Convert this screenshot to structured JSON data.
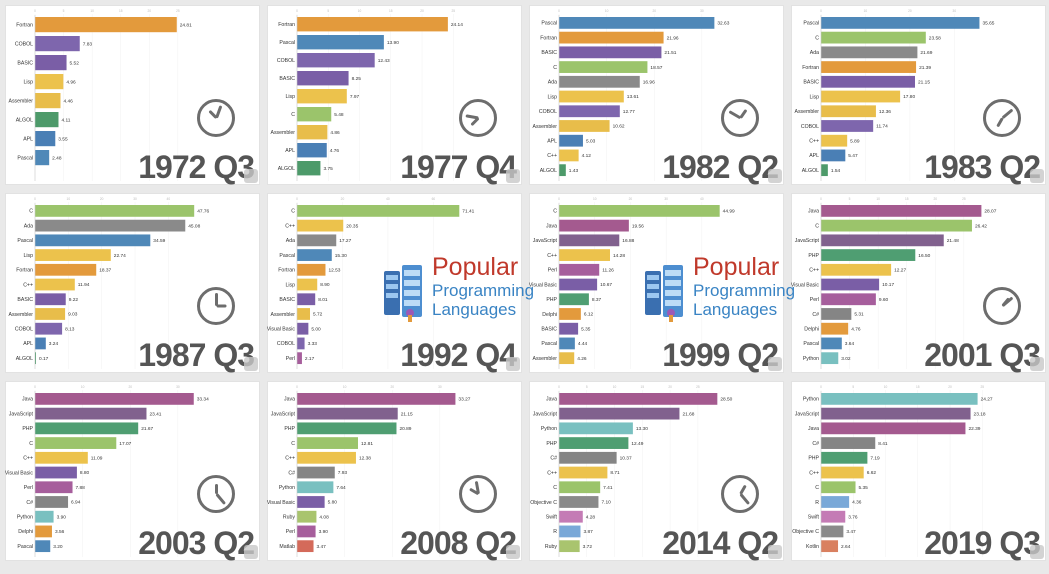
{
  "logo": {
    "title": "Popular",
    "line1": "Programming",
    "line2": "Languages"
  },
  "colors": {
    "Fortran": "#e39a3c",
    "COBOL": "#7e66ad",
    "BASIC": "#7a5ea6",
    "Lisp": "#ecc24c",
    "Assembler": "#e8bd4a",
    "ALGOL": "#4d9a6a",
    "APL": "#4a7fb5",
    "Pascal": "#4f88b8",
    "C": "#9bc46b",
    "Ada": "#8a8a8a",
    "C++": "#ecc24c",
    "Visual Basic": "#7a5ea6",
    "Perl": "#a65e9c",
    "Java": "#a45a8f",
    "JavaScript": "#81618e",
    "PHP": "#4f9e72",
    "Delphi": "#e39a3c",
    "Python": "#79c0c0",
    "C#": "#858585",
    "Ruby": "#a9c46e",
    "Matlab": "#d46a5a",
    "Objective C": "#8a8a8a",
    "Swift": "#c47bb5",
    "R": "#79a8d8",
    "Kotlin": "#d98060"
  },
  "chart_data": [
    {
      "type": "bar",
      "title": "Popular Programming Languages",
      "period": "1972 Q3",
      "categories": [
        "Fortran",
        "COBOL",
        "BASIC",
        "Lisp",
        "Assembler",
        "ALGOL",
        "APL",
        "Pascal"
      ],
      "values": [
        24.81,
        7.83,
        5.52,
        4.96,
        4.46,
        4.11,
        3.55,
        2.48
      ],
      "value_labels": [
        "24.81",
        "7.83",
        "5.52",
        "4.96",
        "4.46",
        "4.11",
        "3.55",
        "2.48"
      ],
      "xlim": [
        0,
        35
      ],
      "ticks": [
        "0",
        "5",
        "10",
        "15",
        "20",
        "25"
      ]
    },
    {
      "type": "bar",
      "period": "1977 Q4",
      "categories": [
        "Fortran",
        "Pascal",
        "COBOL",
        "BASIC",
        "Lisp",
        "C",
        "Assembler",
        "APL",
        "ALGOL"
      ],
      "values": [
        24.14,
        13.9,
        12.43,
        8.25,
        7.97,
        5.48,
        4.86,
        4.76,
        3.75
      ],
      "value_labels": [
        "24.14",
        "13.90",
        "12.43",
        "8.25",
        "7.97",
        "5.48",
        "4.86",
        "4.76",
        "3.75"
      ],
      "xlim": [
        0,
        32
      ],
      "ticks": [
        "0",
        "5",
        "10",
        "15",
        "20",
        "25"
      ]
    },
    {
      "type": "bar",
      "period": "1982 Q2",
      "categories": [
        "Pascal",
        "Fortran",
        "BASIC",
        "C",
        "Ada",
        "Lisp",
        "COBOL",
        "Assembler",
        "APL",
        "C++",
        "ALGOL"
      ],
      "values": [
        32.63,
        21.96,
        21.51,
        18.57,
        16.96,
        13.61,
        12.77,
        10.62,
        5.03,
        4.12,
        1.43
      ],
      "value_labels": [
        "32.63",
        "21.96",
        "21.51",
        "18.57",
        "16.96",
        "13.61",
        "12.77",
        "10.62",
        "5.03",
        "4.12",
        "1.43"
      ],
      "xlim": [
        0,
        42
      ],
      "ticks": [
        "0",
        "10",
        "20",
        "30"
      ]
    },
    {
      "type": "bar",
      "period": "1983 Q2",
      "categories": [
        "Pascal",
        "C",
        "Ada",
        "Fortran",
        "BASIC",
        "Lisp",
        "Assembler",
        "COBOL",
        "C++",
        "APL",
        "ALGOL"
      ],
      "values": [
        35.65,
        23.58,
        21.69,
        21.39,
        21.15,
        17.8,
        12.36,
        11.74,
        5.89,
        5.47,
        1.54
      ],
      "value_labels": [
        "35.65",
        "23.58",
        "21.69",
        "21.39",
        "21.15",
        "17.80",
        "12.36",
        "11.74",
        "5.89",
        "5.47",
        "1.54"
      ],
      "xlim": [
        0,
        45
      ],
      "ticks": [
        "0",
        "10",
        "20",
        "30"
      ]
    },
    {
      "type": "bar",
      "period": "1987 Q3",
      "categories": [
        "C",
        "Ada",
        "Pascal",
        "Lisp",
        "Fortran",
        "C++",
        "BASIC",
        "Assembler",
        "COBOL",
        "APL",
        "ALGOL"
      ],
      "values": [
        47.76,
        45.08,
        34.59,
        22.74,
        18.37,
        11.94,
        9.22,
        9.03,
        8.13,
        3.24,
        0.17
      ],
      "value_labels": [
        "47.76",
        "45.08",
        "34.59",
        "22.74",
        "18.37",
        "11.94",
        "9.22",
        "9.03",
        "8.13",
        "3.24",
        "0.17"
      ],
      "xlim": [
        0,
        60
      ],
      "ticks": [
        "0",
        "10",
        "20",
        "30",
        "40"
      ]
    },
    {
      "type": "bar",
      "period": "1992 Q4",
      "categories": [
        "C",
        "C++",
        "Ada",
        "Pascal",
        "Fortran",
        "Lisp",
        "BASIC",
        "Assembler",
        "Visual Basic",
        "COBOL",
        "Perl"
      ],
      "values": [
        71.41,
        20.35,
        17.27,
        15.3,
        12.53,
        8.9,
        8.01,
        5.72,
        5.0,
        3.33,
        2.17
      ],
      "value_labels": [
        "71.41",
        "20.35",
        "17.27",
        "15.30",
        "12.53",
        "8.90",
        "8.01",
        "5.72",
        "5.00",
        "3.33",
        "2.17"
      ],
      "xlim": [
        0,
        88
      ],
      "ticks": [
        "0",
        "20",
        "40",
        "60"
      ]
    },
    {
      "type": "bar",
      "period": "1999 Q2",
      "categories": [
        "C",
        "Java",
        "JavaScript",
        "C++",
        "Perl",
        "Visual Basic",
        "PHP",
        "Delphi",
        "BASIC",
        "Pascal",
        "Assembler"
      ],
      "values": [
        44.99,
        19.56,
        16.88,
        14.28,
        11.26,
        10.67,
        8.37,
        6.12,
        5.35,
        4.44,
        4.26
      ],
      "value_labels": [
        "44.99",
        "19.56",
        "16.88",
        "14.28",
        "11.26",
        "10.67",
        "8.37",
        "6.12",
        "5.35",
        "4.44",
        "4.26"
      ],
      "xlim": [
        0,
        56
      ],
      "ticks": [
        "0",
        "10",
        "20",
        "30",
        "40"
      ]
    },
    {
      "type": "bar",
      "period": "2001 Q3",
      "categories": [
        "Java",
        "C",
        "JavaScript",
        "PHP",
        "C++",
        "Visual Basic",
        "Perl",
        "C#",
        "Delphi",
        "Pascal",
        "Python"
      ],
      "values": [
        28.07,
        26.42,
        21.48,
        16.5,
        12.27,
        10.17,
        9.6,
        5.31,
        4.76,
        3.64,
        3.02
      ],
      "value_labels": [
        "28.07",
        "26.42",
        "21.48",
        "16.50",
        "12.27",
        "10.17",
        "9.60",
        "5.31",
        "4.76",
        "3.64",
        "3.02"
      ],
      "xlim": [
        0,
        35
      ],
      "ticks": [
        "0",
        "5",
        "10",
        "15",
        "20",
        "25"
      ]
    },
    {
      "type": "bar",
      "period": "2003 Q2",
      "categories": [
        "Java",
        "JavaScript",
        "PHP",
        "C",
        "C++",
        "Visual Basic",
        "Perl",
        "C#",
        "Python",
        "Delphi",
        "Pascal"
      ],
      "values": [
        33.34,
        23.41,
        21.67,
        17.07,
        11.09,
        8.8,
        7.88,
        6.94,
        3.9,
        3.56,
        3.2
      ],
      "value_labels": [
        "33.34",
        "23.41",
        "21.67",
        "17.07",
        "11.09",
        "8.80",
        "7.88",
        "6.94",
        "3.90",
        "3.56",
        "3.20"
      ],
      "xlim": [
        0,
        42
      ],
      "ticks": [
        "0",
        "10",
        "20",
        "30"
      ]
    },
    {
      "type": "bar",
      "period": "2008 Q2",
      "categories": [
        "Java",
        "JavaScript",
        "PHP",
        "C",
        "C++",
        "C#",
        "Python",
        "Visual Basic",
        "Ruby",
        "Perl",
        "Matlab"
      ],
      "values": [
        33.27,
        21.15,
        20.89,
        12.81,
        12.38,
        7.93,
        7.64,
        5.8,
        4.08,
        3.9,
        3.47
      ],
      "value_labels": [
        "33.27",
        "21.15",
        "20.89",
        "12.81",
        "12.38",
        "7.93",
        "7.64",
        "5.80",
        "4.08",
        "3.90",
        "3.47"
      ],
      "xlim": [
        0,
        42
      ],
      "ticks": [
        "0",
        "10",
        "20",
        "30"
      ]
    },
    {
      "type": "bar",
      "period": "2014 Q2",
      "categories": [
        "Java",
        "JavaScript",
        "Python",
        "PHP",
        "C#",
        "C++",
        "C",
        "Objective C",
        "Swift",
        "R",
        "Ruby"
      ],
      "values": [
        28.5,
        21.68,
        13.3,
        12.49,
        10.37,
        8.71,
        7.41,
        7.1,
        4.28,
        3.87,
        3.72
      ],
      "value_labels": [
        "28.50",
        "21.68",
        "13.30",
        "12.49",
        "10.37",
        "8.71",
        "7.41",
        "7.10",
        "4.28",
        "3.87",
        "3.72"
      ],
      "xlim": [
        0,
        36
      ],
      "ticks": [
        "0",
        "5",
        "10",
        "15",
        "20",
        "25"
      ]
    },
    {
      "type": "bar",
      "period": "2019 Q3",
      "categories": [
        "Python",
        "JavaScript",
        "Java",
        "C#",
        "PHP",
        "C++",
        "C",
        "R",
        "Swift",
        "Objective C",
        "Kotlin"
      ],
      "values": [
        24.27,
        23.18,
        22.39,
        8.41,
        7.19,
        6.62,
        5.35,
        4.36,
        3.76,
        3.47,
        2.64
      ],
      "value_labels": [
        "24.27",
        "23.18",
        "22.39",
        "8.41",
        "7.19",
        "6.62",
        "5.35",
        "4.36",
        "3.76",
        "3.47",
        "2.64"
      ],
      "xlim": [
        0,
        31
      ],
      "ticks": [
        "0",
        "5",
        "10",
        "15",
        "20",
        "25"
      ]
    }
  ]
}
